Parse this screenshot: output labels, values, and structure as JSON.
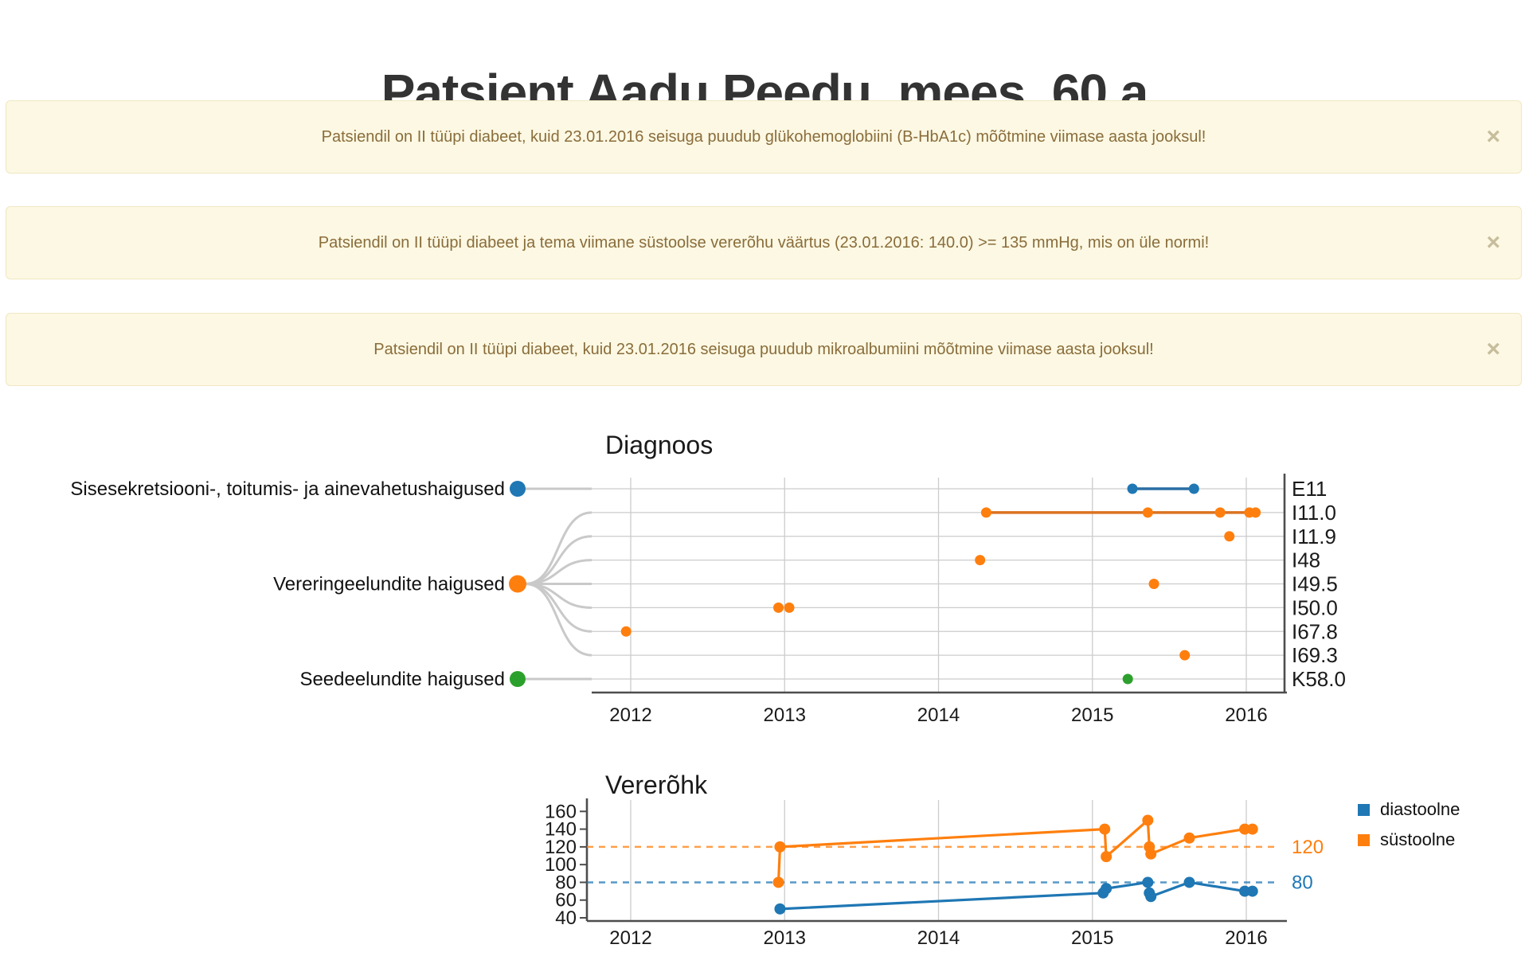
{
  "page": {
    "title": "Patsient Aadu Peedu, mees, 60 a"
  },
  "alerts": {
    "close_symbol": "×",
    "items": [
      {
        "text": "Patsiendil on II tüüpi diabeet, kuid 23.01.2016 seisuga puudub glükohemoglobiini (B-HbA1c) mõõtmine viimase aasta jooksul!"
      },
      {
        "text": "Patsiendil on II tüüpi diabeet ja tema viimane süstoolse vererõhu väärtus (23.01.2016: 140.0) >= 135 mmHg, mis on üle normi!"
      },
      {
        "text": "Patsiendil on II tüüpi diabeet, kuid 23.01.2016 seisuga puudub mikroalbumiini mõõtmine viimase aasta jooksul!"
      }
    ],
    "colors": {
      "bg": "#fcf8e3",
      "border": "#f0e7c3",
      "text": "#8a6d3b",
      "close": "#c7bd9d"
    }
  },
  "chart_data": [
    {
      "type": "scatter",
      "title": "Diagnoos",
      "x_ticks": [
        2012,
        2013,
        2014,
        2015,
        2016
      ],
      "xlim": [
        2011.75,
        2016.25
      ],
      "grid": true,
      "categories": [
        {
          "label": "Sisesekretsiooni-, toitumis- ja ainevahetushaigused",
          "color": "#1f77b4"
        },
        {
          "label": "Vereringeelundite haigused",
          "color": "#ff7f0e"
        },
        {
          "label": "Seedeelundite haigused",
          "color": "#2ca02c"
        }
      ],
      "rows": [
        {
          "code": "E11",
          "category": 0,
          "color": "#1f77b4",
          "line_color": "#2a6da4",
          "connect": true,
          "points": [
            2015.26,
            2015.66
          ]
        },
        {
          "code": "I11.0",
          "category": 1,
          "color": "#ff7f0e",
          "line_color": "#db7220",
          "connect": true,
          "points": [
            2014.31,
            2015.36,
            2015.83,
            2016.02,
            2016.06
          ]
        },
        {
          "code": "I11.9",
          "category": 1,
          "color": "#ff7f0e",
          "connect": false,
          "points": [
            2015.89
          ]
        },
        {
          "code": "I48",
          "category": 1,
          "color": "#ff7f0e",
          "connect": false,
          "points": [
            2014.27
          ]
        },
        {
          "code": "I49.5",
          "category": 1,
          "color": "#ff7f0e",
          "connect": false,
          "points": [
            2015.4
          ]
        },
        {
          "code": "I50.0",
          "category": 1,
          "color": "#ff7f0e",
          "connect": false,
          "points": [
            2012.96,
            2013.03
          ]
        },
        {
          "code": "I67.8",
          "category": 1,
          "color": "#ff7f0e",
          "connect": false,
          "points": [
            2011.97
          ]
        },
        {
          "code": "I69.3",
          "category": 1,
          "color": "#ff7f0e",
          "connect": false,
          "points": [
            2015.6
          ]
        },
        {
          "code": "K58.0",
          "category": 2,
          "color": "#2ca02c",
          "connect": false,
          "points": [
            2015.23
          ]
        }
      ]
    },
    {
      "type": "line",
      "title": "Vererõhk",
      "x_ticks": [
        2012,
        2013,
        2014,
        2015,
        2016
      ],
      "y_ticks": [
        40,
        60,
        80,
        100,
        120,
        140,
        160
      ],
      "xlim": [
        2011.75,
        2016.25
      ],
      "ylim": [
        40,
        165
      ],
      "grid": true,
      "legend_position": "top-right",
      "series": [
        {
          "name": "diastoolne",
          "color": "#1f77b4",
          "ref_line": 80,
          "ref_label": "80",
          "points": [
            [
              2012.97,
              50
            ],
            [
              2015.07,
              68
            ],
            [
              2015.09,
              73
            ],
            [
              2015.36,
              80
            ],
            [
              2015.37,
              68
            ],
            [
              2015.38,
              64
            ],
            [
              2015.63,
              80
            ],
            [
              2015.99,
              70
            ],
            [
              2016.04,
              70
            ]
          ]
        },
        {
          "name": "süstoolne",
          "color": "#ff7f0e",
          "ref_line": 120,
          "ref_label": "120",
          "points": [
            [
              2012.96,
              80
            ],
            [
              2012.97,
              120
            ],
            [
              2015.08,
              140
            ],
            [
              2015.09,
              109
            ],
            [
              2015.36,
              150
            ],
            [
              2015.37,
              120
            ],
            [
              2015.38,
              112
            ],
            [
              2015.63,
              130
            ],
            [
              2015.99,
              140
            ],
            [
              2016.04,
              140
            ]
          ]
        }
      ],
      "legend": [
        "diastoolne",
        "süstoolne"
      ]
    }
  ]
}
